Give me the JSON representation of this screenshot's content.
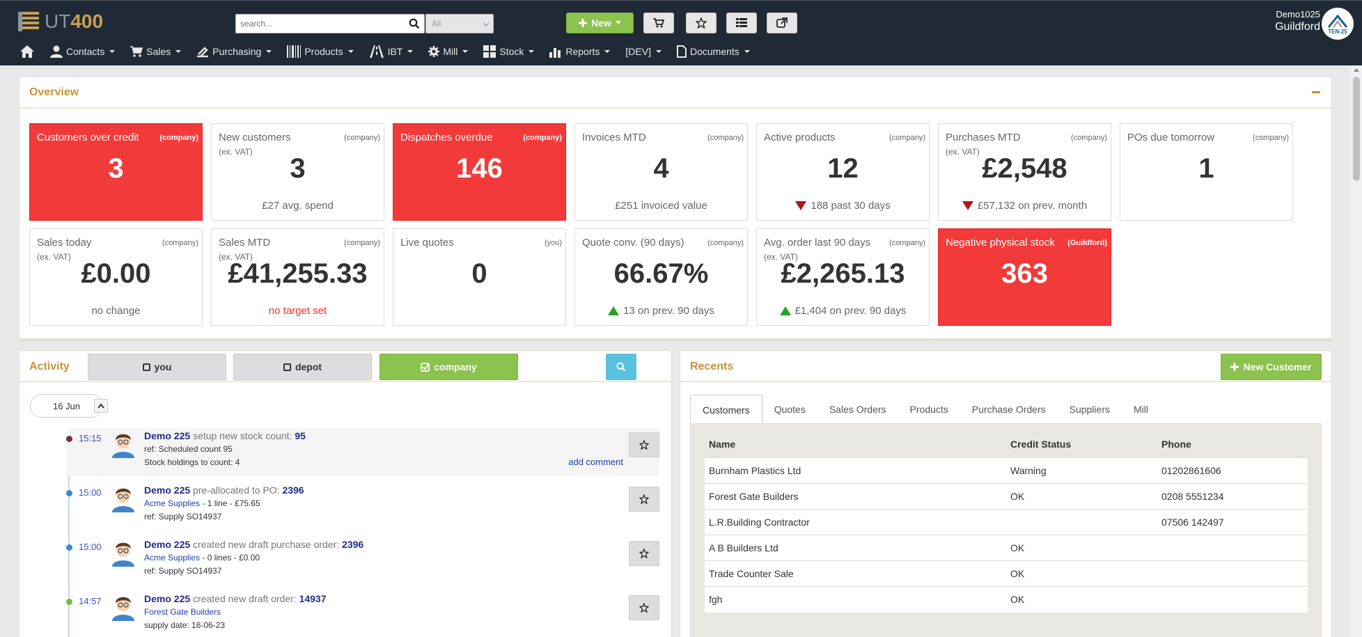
{
  "app": {
    "logo_ut": "UT",
    "logo_num": "400"
  },
  "search": {
    "placeholder": "search...",
    "scope": "All"
  },
  "toolbar": {
    "new_label": "New"
  },
  "user": {
    "name": "Demo1025",
    "depot": "Guildford",
    "avatar_text": "TEN-25"
  },
  "nav": [
    {
      "label": "Contacts",
      "icon": "person-icon"
    },
    {
      "label": "Sales",
      "icon": "cart-icon"
    },
    {
      "label": "Purchasing",
      "icon": "truck-icon"
    },
    {
      "label": "Products",
      "icon": "barcode-icon"
    },
    {
      "label": "IBT",
      "icon": "road-icon"
    },
    {
      "label": "Mill",
      "icon": "cog-icon"
    },
    {
      "label": "Stock",
      "icon": "grid-icon"
    },
    {
      "label": "Reports",
      "icon": "bar-chart-icon"
    },
    {
      "label": "[DEV]",
      "icon": ""
    },
    {
      "label": "Documents",
      "icon": "document-icon"
    }
  ],
  "overview": {
    "title": "Overview",
    "tiles": [
      {
        "label": "Customers over credit",
        "scope": "(company)",
        "sub": "",
        "value": "3",
        "foot": "",
        "red": true,
        "trend": ""
      },
      {
        "label": "New customers",
        "scope": "(company)",
        "sub": "(ex. VAT)",
        "value": "3",
        "foot": "£27 avg. spend",
        "red": false,
        "trend": ""
      },
      {
        "label": "Dispatches overdue",
        "scope": "(company)",
        "sub": "",
        "value": "146",
        "foot": "",
        "red": true,
        "trend": ""
      },
      {
        "label": "Invoices MTD",
        "scope": "(company)",
        "sub": "",
        "value": "4",
        "foot": "£251 invoiced value",
        "red": false,
        "trend": ""
      },
      {
        "label": "Active products",
        "scope": "(company)",
        "sub": "",
        "value": "12",
        "foot": "188 past 30 days",
        "red": false,
        "trend": "down"
      },
      {
        "label": "Purchases MTD",
        "scope": "(company)",
        "sub": "(ex. VAT)",
        "value": "£2,548",
        "foot": "£57,132 on prev. month",
        "red": false,
        "trend": "down"
      },
      {
        "label": "POs due tomorrow",
        "scope": "(company)",
        "sub": "",
        "value": "1",
        "foot": "",
        "red": false,
        "trend": ""
      },
      {
        "label": "Sales today",
        "scope": "(company)",
        "sub": "(ex. VAT)",
        "value": "£0.00",
        "foot": "no change",
        "red": false,
        "trend": ""
      },
      {
        "label": "Sales MTD",
        "scope": "(company)",
        "sub": "(ex. VAT)",
        "value": "£41,255.33",
        "foot": "no target set",
        "red": false,
        "trend": "warn"
      },
      {
        "label": "Live quotes",
        "scope": "(you)",
        "sub": "",
        "value": "0",
        "foot": "",
        "red": false,
        "trend": ""
      },
      {
        "label": "Quote conv. (90 days)",
        "scope": "(company)",
        "sub": "",
        "value": "66.67%",
        "foot": "13 on prev. 90 days",
        "red": false,
        "trend": "up"
      },
      {
        "label": "Avg. order last 90 days",
        "scope": "(company)",
        "sub": "(ex. VAT)",
        "value": "£2,265.13",
        "foot": "£1,404 on prev. 90 days",
        "red": false,
        "trend": "up"
      },
      {
        "label": "Negative physical stock",
        "scope": "(Guildford)",
        "sub": "",
        "value": "363",
        "foot": "",
        "red": true,
        "trend": ""
      }
    ]
  },
  "activity": {
    "title": "Activity",
    "filters": {
      "you": "you",
      "depot": "depot",
      "company": "company"
    },
    "date": "16 Jun",
    "items": [
      {
        "time": "15:15",
        "user": "Demo 225",
        "action": "setup new stock count:",
        "ref": "95",
        "line2": "ref: Scheduled count 95",
        "line2_link": "",
        "line3": "Stock holdings to count: 4",
        "comment": "add comment",
        "dot": "#7a2d4a"
      },
      {
        "time": "15:00",
        "user": "Demo 225",
        "action": "pre-allocated to PO:",
        "ref": "2396",
        "line2": " - 1 line - £75.65",
        "line2_link": "Acme Supplies",
        "line3": "ref: Supply SO14937",
        "comment": "",
        "dot": "#3a86d8"
      },
      {
        "time": "15:00",
        "user": "Demo 225",
        "action": "created new draft purchase order:",
        "ref": "2396",
        "line2": " - 0 lines - £0.00",
        "line2_link": "Acme Supplies",
        "line3": "ref: Supply SO14937",
        "comment": "",
        "dot": "#3a86d8"
      },
      {
        "time": "14:57",
        "user": "Demo 225",
        "action": "created new draft order:",
        "ref": "14937",
        "line2": "",
        "line2_link": "Forest Gate Builders",
        "line3": "supply date: 16-06-23",
        "comment": "",
        "dot": "#6dbb4a"
      }
    ]
  },
  "recents": {
    "title": "Recents",
    "new_customer": "New Customer",
    "tabs": [
      "Customers",
      "Quotes",
      "Sales Orders",
      "Products",
      "Purchase Orders",
      "Suppliers",
      "Mill"
    ],
    "columns": [
      "Name",
      "Credit Status",
      "Phone"
    ],
    "rows": [
      [
        "Burnham Plastics Ltd",
        "Warning",
        "01202861606"
      ],
      [
        "Forest Gate Builders",
        "OK",
        "0208 5551234"
      ],
      [
        "L.R.Building Contractor",
        "",
        "07506 142497"
      ],
      [
        "A B Builders Ltd",
        "OK",
        ""
      ],
      [
        "Trade Counter Sale",
        "OK",
        ""
      ],
      [
        "fgh",
        "OK",
        ""
      ]
    ]
  }
}
